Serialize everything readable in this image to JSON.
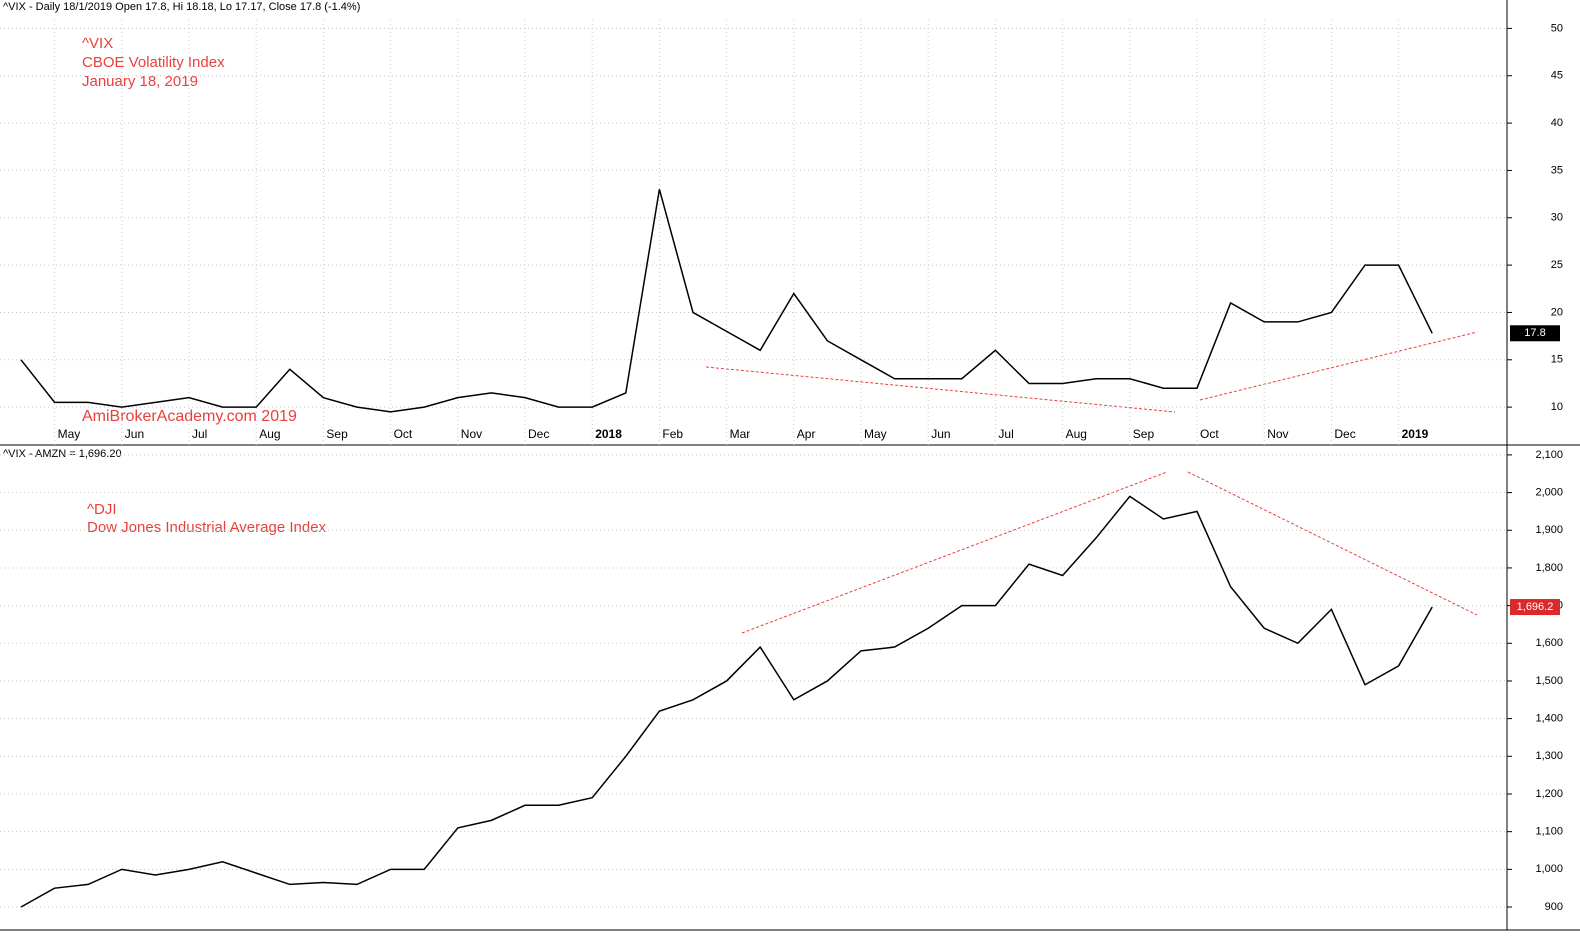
{
  "chart_data": [
    {
      "type": "line",
      "header": "^VIX - Daily 18/1/2019 Open 17.8, Hi 18.18, Lo 17.17, Close 17.8 (-1.4%)",
      "annotations": [
        "^VIX",
        "CBOE Volatility Index",
        "January 18, 2019"
      ],
      "watermark": "AmiBrokerAcademy.com  2019",
      "categories": [
        null,
        "May",
        null,
        "Jun",
        null,
        "Jul",
        null,
        "Aug",
        null,
        "Sep",
        null,
        "Oct",
        null,
        "Nov",
        null,
        "Dec",
        null,
        "2018",
        null,
        "Feb",
        null,
        "Mar",
        null,
        "Apr",
        null,
        "May",
        null,
        "Jun",
        null,
        "Jul",
        null,
        "Aug",
        null,
        "Sep",
        null,
        "Oct",
        null,
        "Nov",
        null,
        "Dec",
        null,
        "2019",
        null
      ],
      "values": [
        15,
        10.5,
        10.5,
        10,
        10.5,
        11,
        10,
        10,
        14,
        11,
        10,
        9.5,
        10,
        11,
        11.5,
        11,
        10,
        10,
        11.5,
        33,
        20,
        18,
        16,
        22,
        17,
        15,
        13,
        13,
        13,
        16,
        12.5,
        12.5,
        13,
        13,
        12,
        12,
        21,
        19,
        19,
        20,
        25,
        25,
        17.8
      ],
      "color": "#000000",
      "last_label": "17.8",
      "ylim": [
        6,
        53
      ],
      "yticks": [
        10,
        15,
        20,
        25,
        30,
        35,
        40,
        45,
        50
      ],
      "grid": true
    },
    {
      "type": "line",
      "header": "^VIX - AMZN = 1,696.20",
      "annotations": [
        "^DJI",
        "Dow Jones Industrial Average Index"
      ],
      "categories": [
        null,
        null,
        null,
        null,
        null,
        null,
        null,
        null,
        null,
        null,
        null,
        null,
        null,
        null,
        null,
        null,
        null,
        null,
        null,
        null,
        null,
        null,
        null,
        null,
        null,
        null,
        null,
        null,
        null,
        null,
        null,
        null,
        null,
        null,
        null,
        null,
        null,
        null,
        null,
        null,
        null,
        null,
        null
      ],
      "values": [
        900,
        950,
        960,
        1000,
        985,
        1000,
        1020,
        990,
        960,
        965,
        960,
        1000,
        1000,
        1110,
        1130,
        1170,
        1170,
        1190,
        1300,
        1420,
        1450,
        1500,
        1590,
        1450,
        1500,
        1580,
        1590,
        1640,
        1700,
        1700,
        1810,
        1780,
        1880,
        1990,
        1930,
        1950,
        1750,
        1640,
        1600,
        1690,
        1490,
        1540,
        1696.2
      ],
      "color": "#000000",
      "last_label": "1,696.2",
      "ylim": [
        839,
        2121
      ],
      "yticks": [
        900,
        {
          "value": 1000,
          "label": "1,000"
        },
        {
          "value": 1100,
          "label": "1,100"
        },
        {
          "value": 1200,
          "label": "1,200"
        },
        {
          "value": 1300,
          "label": "1,300"
        },
        {
          "value": 1400,
          "label": "1,400"
        },
        {
          "value": 1500,
          "label": "1,500"
        },
        {
          "value": 1600,
          "label": "1,600"
        },
        {
          "value": 1700,
          "label": "1,700"
        },
        {
          "value": 1800,
          "label": "1,800"
        },
        {
          "value": 1900,
          "label": "1,900"
        },
        {
          "value": 2000,
          "label": "2,000"
        },
        {
          "value": 2100,
          "label": "2,100"
        }
      ],
      "grid": true
    }
  ]
}
